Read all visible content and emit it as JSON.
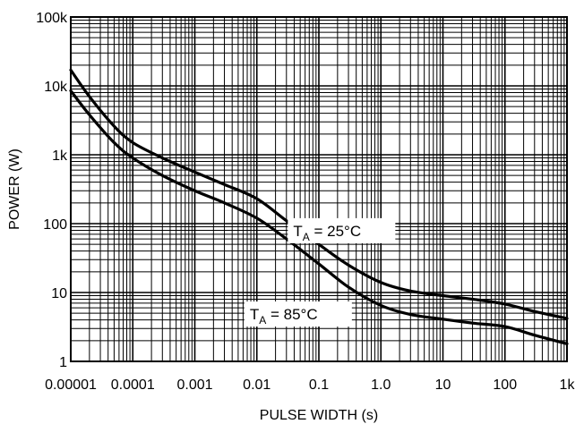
{
  "chart_data": {
    "type": "line",
    "title": "",
    "xlabel": "PULSE WIDTH (s)",
    "ylabel": "POWER (W)",
    "xscale": "log",
    "yscale": "log",
    "xlim": [
      1e-05,
      1000
    ],
    "ylim": [
      1,
      100000
    ],
    "grid": true,
    "x_ticks": [
      {
        "value": 1e-05,
        "label": "0.00001"
      },
      {
        "value": 0.0001,
        "label": "0.0001"
      },
      {
        "value": 0.001,
        "label": "0.001"
      },
      {
        "value": 0.01,
        "label": "0.01"
      },
      {
        "value": 0.1,
        "label": "0.1"
      },
      {
        "value": 1,
        "label": "1.0"
      },
      {
        "value": 10,
        "label": "10"
      },
      {
        "value": 100,
        "label": "100"
      },
      {
        "value": 1000,
        "label": "1k"
      }
    ],
    "y_ticks": [
      {
        "value": 1,
        "label": "1"
      },
      {
        "value": 10,
        "label": "10"
      },
      {
        "value": 100,
        "label": "100"
      },
      {
        "value": 1000,
        "label": "1k"
      },
      {
        "value": 10000,
        "label": "10k"
      },
      {
        "value": 100000,
        "label": "100k"
      }
    ],
    "series": [
      {
        "annotation": {
          "main": "T",
          "sub": "A",
          "rest": " = 25°C"
        },
        "points": [
          [
            1e-05,
            17000
          ],
          [
            2e-05,
            7000
          ],
          [
            5e-05,
            2600
          ],
          [
            0.0001,
            1500
          ],
          [
            0.0003,
            900
          ],
          [
            0.001,
            560
          ],
          [
            0.003,
            370
          ],
          [
            0.01,
            230
          ],
          [
            0.03,
            110
          ],
          [
            0.1,
            50
          ],
          [
            0.3,
            25
          ],
          [
            1,
            14
          ],
          [
            3,
            10.5
          ],
          [
            10,
            9
          ],
          [
            30,
            8
          ],
          [
            100,
            6.8
          ],
          [
            300,
            5.3
          ],
          [
            1000,
            4.2
          ]
        ]
      },
      {
        "annotation": {
          "main": "T",
          "sub": "A",
          "rest": " = 85°C"
        },
        "points": [
          [
            1e-05,
            8500
          ],
          [
            2e-05,
            3800
          ],
          [
            5e-05,
            1500
          ],
          [
            0.0001,
            900
          ],
          [
            0.0003,
            500
          ],
          [
            0.001,
            300
          ],
          [
            0.003,
            200
          ],
          [
            0.01,
            120
          ],
          [
            0.03,
            60
          ],
          [
            0.1,
            26
          ],
          [
            0.3,
            12
          ],
          [
            1,
            6.5
          ],
          [
            3,
            4.8
          ],
          [
            10,
            4.1
          ],
          [
            30,
            3.6
          ],
          [
            100,
            3.2
          ],
          [
            300,
            2.4
          ],
          [
            1000,
            1.8
          ]
        ]
      }
    ]
  }
}
